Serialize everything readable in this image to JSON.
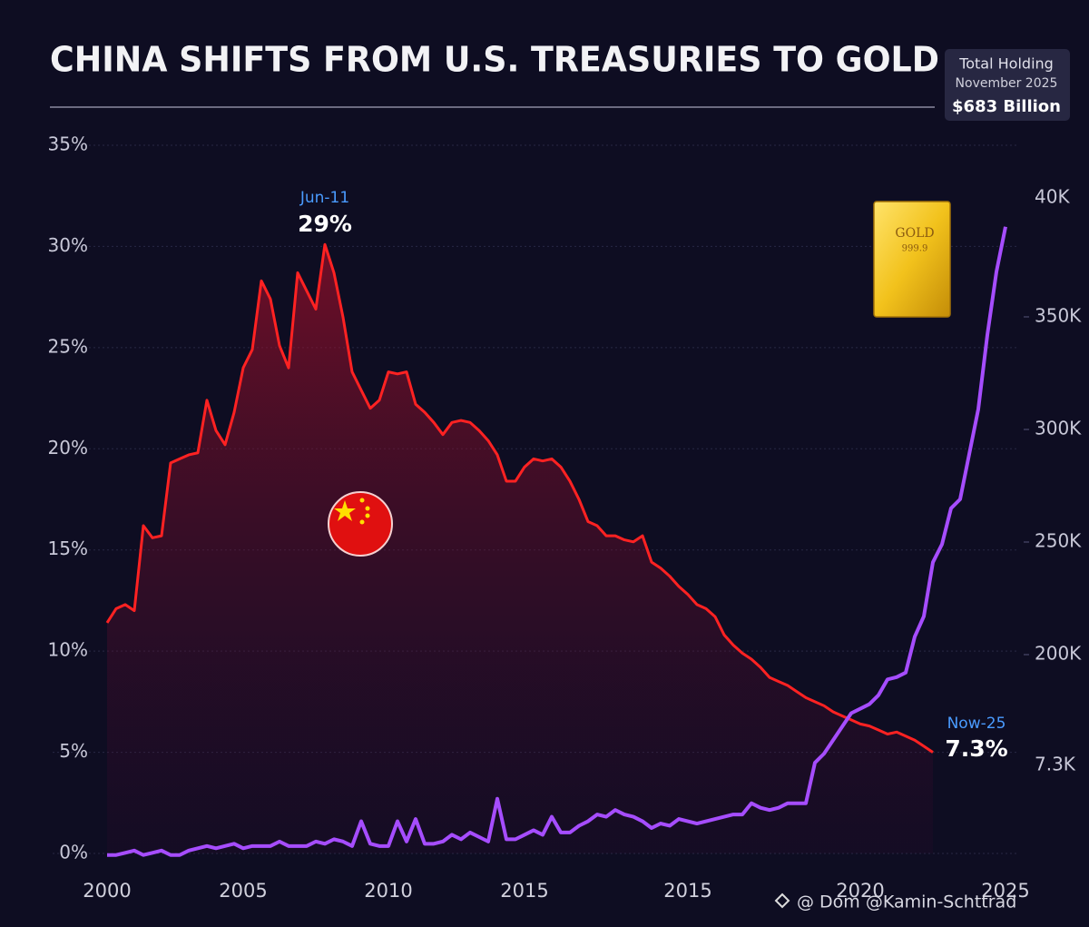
{
  "chart_data": {
    "type": "line",
    "title": "CHINA SHIFTS FROM U.S. TREASURIES TO GOLD",
    "holding_box": {
      "title": "Total Holding",
      "date": "November 2025",
      "amount": "$683 Billion"
    },
    "gold_bar": {
      "label": "GOLD",
      "purity": "999.9"
    },
    "annotations": [
      {
        "date": "Jun-11",
        "text": "29%"
      },
      {
        "date": "Now-25",
        "text": "7.3%"
      }
    ],
    "watermark": "@ Dom @Kamin-Schttrad",
    "categories": [
      "2000",
      null,
      null,
      null,
      null,
      null,
      null,
      null,
      null,
      null,
      null,
      null,
      null,
      null,
      null,
      "2005",
      null,
      null,
      null,
      null,
      null,
      null,
      null,
      null,
      null,
      null,
      null,
      null,
      null,
      null,
      null,
      "2010",
      null,
      null,
      null,
      null,
      null,
      null,
      null,
      null,
      null,
      null,
      null,
      null,
      null,
      null,
      "2015",
      null,
      null,
      null,
      null,
      null,
      null,
      null,
      null,
      null,
      null,
      null,
      null,
      null,
      null,
      null,
      null,
      null,
      "2015",
      null,
      null,
      null,
      null,
      null,
      null,
      null,
      null,
      null,
      null,
      null,
      null,
      null,
      null,
      null,
      null,
      null,
      null,
      "2020",
      null,
      null,
      null,
      null,
      null,
      null,
      null,
      null,
      null,
      null,
      null,
      null,
      null,
      null,
      null,
      "2025"
    ],
    "series": [
      {
        "color": "#ff2222",
        "fill": true,
        "values": [
          11.4,
          12.1,
          12.3,
          12.0,
          16.2,
          15.6,
          15.7,
          19.3,
          19.5,
          19.7,
          19.8,
          22.4,
          20.9,
          20.2,
          21.8,
          24.0,
          24.9,
          28.3,
          27.4,
          25.1,
          24.0,
          28.7,
          27.8,
          26.9,
          30.1,
          28.7,
          26.5,
          23.8,
          22.9,
          22.0,
          22.4,
          23.8,
          23.7,
          23.8,
          22.2,
          21.8,
          21.3,
          20.7,
          21.3,
          21.4,
          21.3,
          20.9,
          20.4,
          19.7,
          18.4,
          18.4,
          19.1,
          19.5,
          19.4,
          19.5,
          19.1,
          18.4,
          17.5,
          16.4,
          16.2,
          15.7,
          15.7,
          15.5,
          15.4,
          15.7,
          14.4,
          14.1,
          13.7,
          13.2,
          12.8,
          12.3,
          12.1,
          11.7,
          10.8,
          10.3,
          9.9,
          9.6,
          9.2,
          8.7,
          8.5,
          8.3,
          8.0,
          7.7,
          7.5,
          7.3,
          7.0,
          6.8,
          6.6,
          6.4,
          6.3,
          6.1,
          5.9,
          6.0,
          5.8,
          5.6,
          5.3,
          5.0,
          null,
          null,
          null,
          null,
          null,
          null,
          null,
          null
        ]
      },
      {
        "color": "#a64dff",
        "axis": "y2",
        "fill": false,
        "values": [
          111000,
          111000,
          112000,
          113000,
          111000,
          112000,
          113000,
          111000,
          111000,
          113000,
          114000,
          115000,
          114000,
          115000,
          116000,
          114000,
          115000,
          115000,
          115000,
          117000,
          115000,
          115000,
          115000,
          117000,
          116000,
          118000,
          117000,
          115000,
          126000,
          116000,
          115000,
          115000,
          126000,
          117000,
          127000,
          116000,
          116000,
          117000,
          120000,
          118000,
          121000,
          119000,
          117000,
          136000,
          118000,
          118000,
          120000,
          122000,
          120000,
          128000,
          121000,
          121000,
          124000,
          126000,
          129000,
          128000,
          131000,
          129000,
          128000,
          126000,
          123000,
          125000,
          124000,
          127000,
          126000,
          125000,
          126000,
          127000,
          128000,
          129000,
          129000,
          134000,
          132000,
          131000,
          132000,
          134000,
          134000,
          134000,
          152000,
          156000,
          162000,
          168000,
          174000,
          176000,
          178000,
          182000,
          189000,
          190000,
          192000,
          208000,
          217000,
          241000,
          249000,
          265000,
          269000,
          289000,
          309000,
          342000,
          370000,
          390000
        ]
      }
    ],
    "ylim": [
      0,
      35
    ],
    "yticks": [
      {
        "value": 0,
        "label": "0%"
      },
      {
        "value": 5,
        "label": "5%"
      },
      {
        "value": 10,
        "label": "10%"
      },
      {
        "value": 15,
        "label": "15%"
      },
      {
        "value": 20,
        "label": "20%"
      },
      {
        "value": 25,
        "label": "25%"
      },
      {
        "value": 30,
        "label": "30%"
      },
      {
        "value": 35,
        "label": "35%"
      }
    ],
    "y2lim": [
      111700,
      426200
    ],
    "y2ticks": [
      {
        "value": 200000,
        "label": "200K"
      },
      {
        "value": 250000,
        "label": "250K"
      },
      {
        "value": 300000,
        "label": "300K"
      },
      {
        "value": 350000,
        "label": "350K"
      }
    ],
    "y2_extra_labels": [
      "40K",
      "7.3K"
    ],
    "grid": true
  }
}
